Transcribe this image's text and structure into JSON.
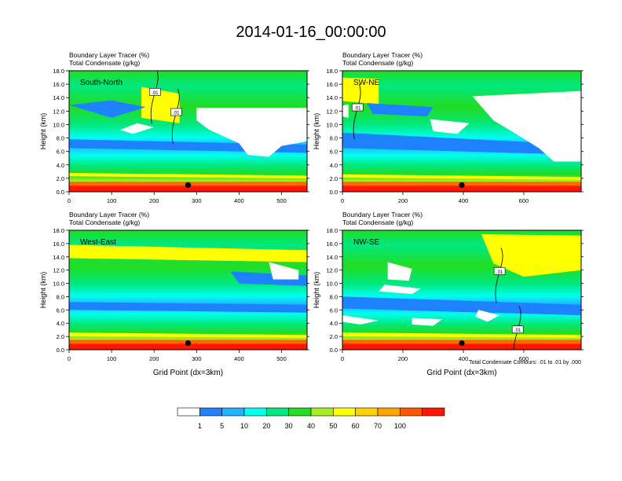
{
  "title": "2014-01-16_00:00:00",
  "footnote": "Total Condensate Contours: .01 to .01 by .000",
  "colors": {
    "levels": [
      "#ffffff",
      "#1e82ff",
      "#20b4ff",
      "#00ffee",
      "#00e880",
      "#22dd22",
      "#a5ee22",
      "#ffff00",
      "#ffd000",
      "#ffa500",
      "#ff5500",
      "#ff1500"
    ],
    "contour": "#000000",
    "marker": "#000000"
  },
  "colorbar": {
    "labels": [
      "1",
      "5",
      "10",
      "20",
      "30",
      "40",
      "50",
      "60",
      "70",
      "100"
    ]
  },
  "chart_data": [
    {
      "type": "heatmap",
      "panel_label": "South-North",
      "subtitle_1": "Boundary Layer Tracer   (%)",
      "subtitle_2": "Total Condensate   (g/kg)",
      "ylabel": "Height (km)",
      "xlabel": "",
      "xlim": [
        0,
        560
      ],
      "ylim": [
        0,
        18
      ],
      "xticks": [
        {
          "v": 0,
          "l": "0"
        },
        {
          "v": 100,
          "l": "100"
        },
        {
          "v": 200,
          "l": "200"
        },
        {
          "v": 300,
          "l": "300"
        },
        {
          "v": 400,
          "l": "400"
        },
        {
          "v": 500,
          "l": "500"
        }
      ],
      "yticks": [
        "0.0",
        "2.0",
        "4.0",
        "6.0",
        "8.0",
        "10.0",
        "12.0",
        "14.0",
        "16.0",
        "18.0"
      ],
      "marker": {
        "x": 280,
        "y": 1.0
      },
      "contour_labels": [
        {
          "text": ".01",
          "x": 202,
          "y": 14.8
        },
        {
          "text": ".01",
          "x": 252,
          "y": 11.8
        }
      ],
      "white_regions": [
        [
          300,
          12.5,
          560,
          12.5,
          560,
          7.5,
          500,
          6.8,
          470,
          5.2,
          420,
          5.5,
          400,
          7.2,
          330,
          9.2,
          300,
          10.6
        ],
        [
          120,
          9.2,
          150,
          8.6,
          200,
          9.6,
          160,
          10.2
        ]
      ],
      "blue_bands": [
        [
          0,
          7.8,
          560,
          7.0,
          560,
          5.8,
          0,
          6.5
        ],
        [
          0,
          12.9,
          100,
          11.0,
          180,
          12.6,
          100,
          13.6
        ]
      ],
      "yellow_regions": [
        [
          170,
          15.6,
          260,
          14.6,
          260,
          10.2,
          170,
          11.0
        ],
        [
          0,
          2.8,
          560,
          2.4,
          560,
          2.0,
          0,
          2.3
        ]
      ]
    },
    {
      "type": "heatmap",
      "panel_label": "SW-NE",
      "subtitle_1": "Boundary Layer Tracer   (%)",
      "subtitle_2": "Total Condensate   (g/kg)",
      "ylabel": "Height (km)",
      "xlabel": "",
      "xlim": [
        0,
        790
      ],
      "ylim": [
        0,
        18
      ],
      "xticks": [
        {
          "v": 0,
          "l": "0"
        },
        {
          "v": 200,
          "l": "200"
        },
        {
          "v": 400,
          "l": "400"
        },
        {
          "v": 600,
          "l": "600"
        }
      ],
      "yticks": [
        "0.0",
        "2.0",
        "4.0",
        "6.0",
        "8.0",
        "10.0",
        "12.0",
        "14.0",
        "16.0",
        "18.0"
      ],
      "marker": {
        "x": 395,
        "y": 1.0
      },
      "contour_labels": [
        {
          "text": ".01",
          "x": 50,
          "y": 12.5
        }
      ],
      "white_regions": [
        [
          430,
          14.2,
          790,
          15.0,
          790,
          4.5,
          700,
          4.5,
          650,
          6.5,
          560,
          9.0,
          500,
          10.6
        ],
        [
          290,
          10.8,
          420,
          10.2,
          380,
          8.6,
          300,
          9.0
        ],
        [
          0,
          12.8,
          20,
          13.0,
          20,
          11.0,
          0,
          11.2
        ]
      ],
      "blue_bands": [
        [
          0,
          8.8,
          790,
          7.0,
          790,
          5.5,
          0,
          6.5
        ],
        [
          80,
          13.2,
          300,
          12.6,
          280,
          11.2,
          100,
          11.6
        ]
      ],
      "yellow_regions": [
        [
          0,
          17.0,
          120,
          16.8,
          120,
          13.0,
          0,
          13.5
        ],
        [
          0,
          2.6,
          790,
          2.2,
          790,
          1.8,
          0,
          2.1
        ]
      ]
    },
    {
      "type": "heatmap",
      "panel_label": "West-East",
      "subtitle_1": "Boundary Layer Tracer   (%)",
      "subtitle_2": "Total Condensate   (g/kg)",
      "ylabel": "Height (km)",
      "xlabel": "Grid Point (dx=3km)",
      "xlim": [
        0,
        560
      ],
      "ylim": [
        0,
        18
      ],
      "xticks": [
        {
          "v": 0,
          "l": "0"
        },
        {
          "v": 100,
          "l": "100"
        },
        {
          "v": 200,
          "l": "200"
        },
        {
          "v": 300,
          "l": "300"
        },
        {
          "v": 400,
          "l": "400"
        },
        {
          "v": 500,
          "l": "500"
        }
      ],
      "yticks": [
        "0.0",
        "2.0",
        "4.0",
        "6.0",
        "8.0",
        "10.0",
        "12.0",
        "14.0",
        "16.0",
        "18.0"
      ],
      "marker": {
        "x": 280,
        "y": 1.0
      },
      "contour_labels": [],
      "white_regions": [
        [
          470,
          13.2,
          540,
          12.0,
          540,
          10.6,
          480,
          10.6
        ]
      ],
      "blue_bands": [
        [
          0,
          7.2,
          560,
          6.8,
          560,
          5.6,
          0,
          6.0
        ],
        [
          380,
          11.8,
          560,
          11.2,
          560,
          9.6,
          400,
          10.0
        ]
      ],
      "yellow_regions": [
        [
          0,
          15.8,
          560,
          15.0,
          560,
          13.2,
          0,
          13.8
        ],
        [
          0,
          2.6,
          560,
          2.2,
          560,
          1.8,
          0,
          2.0
        ]
      ]
    },
    {
      "type": "heatmap",
      "panel_label": "NW-SE",
      "subtitle_1": "Boundary Layer Tracer   (%)",
      "subtitle_2": "Total Condensate   (g/kg)",
      "ylabel": "Height (km)",
      "xlabel": "Grid Point (dx=3km)",
      "xlim": [
        0,
        790
      ],
      "ylim": [
        0,
        18
      ],
      "xticks": [
        {
          "v": 0,
          "l": "0"
        },
        {
          "v": 200,
          "l": "200"
        },
        {
          "v": 400,
          "l": "400"
        },
        {
          "v": 600,
          "l": "600"
        }
      ],
      "yticks": [
        "0.0",
        "2.0",
        "4.0",
        "6.0",
        "8.0",
        "10.0",
        "12.0",
        "14.0",
        "16.0",
        "18.0"
      ],
      "marker": {
        "x": 395,
        "y": 1.0
      },
      "contour_labels": [
        {
          "text": ".01",
          "x": 520,
          "y": 11.8
        },
        {
          "text": ".01",
          "x": 580,
          "y": 3.0
        }
      ],
      "white_regions": [
        [
          150,
          13.2,
          230,
          12.2,
          220,
          10.4,
          150,
          10.6
        ],
        [
          140,
          9.8,
          260,
          9.2,
          230,
          8.4,
          120,
          8.8
        ],
        [
          0,
          5.2,
          120,
          4.4,
          60,
          3.8,
          0,
          4.2
        ],
        [
          230,
          4.8,
          330,
          4.6,
          300,
          3.6,
          230,
          3.8
        ],
        [
          450,
          6.0,
          520,
          5.2,
          480,
          4.2,
          440,
          5.0
        ]
      ],
      "blue_bands": [
        [
          0,
          8.0,
          790,
          6.8,
          790,
          5.2,
          0,
          6.2
        ]
      ],
      "yellow_regions": [
        [
          460,
          17.4,
          790,
          17.2,
          790,
          12.0,
          600,
          11.0,
          500,
          13.0
        ],
        [
          0,
          2.6,
          790,
          2.2,
          790,
          1.8,
          0,
          2.0
        ]
      ]
    }
  ]
}
